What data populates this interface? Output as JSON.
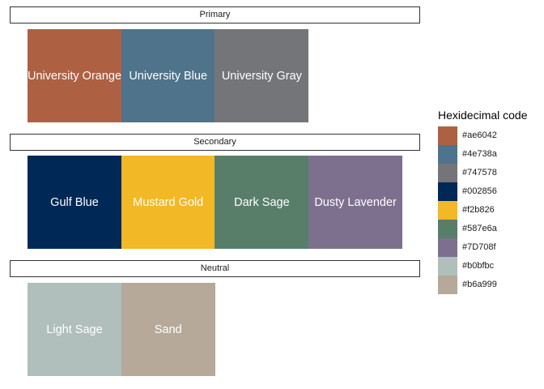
{
  "chart_data": {
    "type": "heatmap",
    "panels": [
      {
        "label": "Primary",
        "tiles": [
          {
            "name": "University Orange",
            "hex": "#ae6042"
          },
          {
            "name": "University Blue",
            "hex": "#4e738a"
          },
          {
            "name": "University Gray",
            "hex": "#747578"
          }
        ]
      },
      {
        "label": "Secondary",
        "tiles": [
          {
            "name": "Gulf Blue",
            "hex": "#002856"
          },
          {
            "name": "Mustard Gold",
            "hex": "#f2b826"
          },
          {
            "name": "Dark Sage",
            "hex": "#587e6a"
          },
          {
            "name": "Dusty Lavender",
            "hex": "#7D708f"
          }
        ]
      },
      {
        "label": "Neutral",
        "tiles": [
          {
            "name": "Light Sage",
            "hex": "#b0bfbc"
          },
          {
            "name": "Sand",
            "hex": "#b6a999"
          }
        ]
      }
    ],
    "legend": {
      "title": "Hexidecimal code",
      "entries": [
        "#ae6042",
        "#4e738a",
        "#747578",
        "#002856",
        "#f2b826",
        "#587e6a",
        "#7D708f",
        "#b0bfbc",
        "#b6a999"
      ]
    }
  }
}
